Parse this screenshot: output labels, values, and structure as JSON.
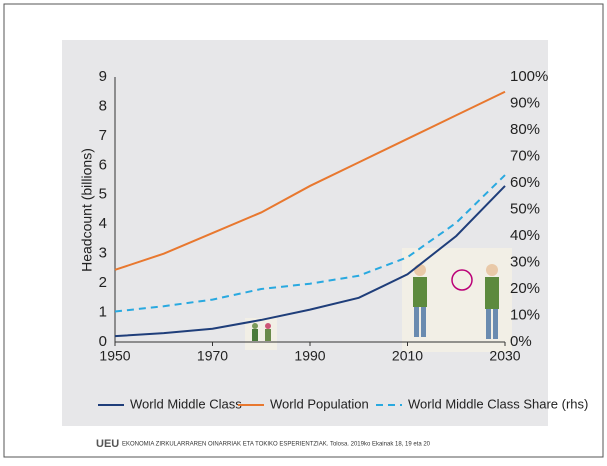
{
  "chart_data": {
    "type": "line",
    "y_label": "Headcount (billions)",
    "x": [
      1950,
      1960,
      1970,
      1980,
      1990,
      2000,
      2010,
      2020,
      2030
    ],
    "xlim": [
      1950,
      2030
    ],
    "xticks": [
      1950,
      1970,
      1990,
      2010,
      2030
    ],
    "ylim": [
      0,
      9
    ],
    "yticks": [
      0,
      1,
      2,
      3,
      4,
      5,
      6,
      7,
      8,
      9
    ],
    "y2lim": [
      0,
      100
    ],
    "y2ticks": [
      {
        "value": 0,
        "label": "0%"
      },
      {
        "value": 10,
        "label": "10%"
      },
      {
        "value": 20,
        "label": "20%"
      },
      {
        "value": 30,
        "label": "30%"
      },
      {
        "value": 40,
        "label": "40%"
      },
      {
        "value": 50,
        "label": "50%"
      },
      {
        "value": 60,
        "label": "60%"
      },
      {
        "value": 70,
        "label": "70%"
      },
      {
        "value": 80,
        "label": "80%"
      },
      {
        "value": 90,
        "label": "90%"
      },
      {
        "value": 100,
        "label": "100%"
      }
    ],
    "legend": "bottom",
    "series": [
      {
        "name": "World Middle Class",
        "color": "#1f3e7a",
        "dash": false,
        "values": [
          0.2,
          0.3,
          0.45,
          0.75,
          1.1,
          1.5,
          2.3,
          3.6,
          5.3
        ]
      },
      {
        "name": "World Population",
        "color": "#e8782f",
        "dash": false,
        "values": [
          2.45,
          3.0,
          3.7,
          4.4,
          5.3,
          6.1,
          6.9,
          7.7,
          8.5
        ]
      },
      {
        "name": "World Middle Class Share (rhs)",
        "color": "#29a9e0",
        "dash": true,
        "axis": "y2",
        "values": [
          11.5,
          13.5,
          16,
          20,
          22,
          25,
          32,
          45,
          63
        ]
      }
    ]
  },
  "footer": {
    "logo": "UEU",
    "text": "EKONOMIA ZIRKULARRAREN OINARRIAK ETA TOKIKO ESPERIENTZIAK. Tolosa. 2019ko Ekainak 18, 19 eta 20"
  }
}
